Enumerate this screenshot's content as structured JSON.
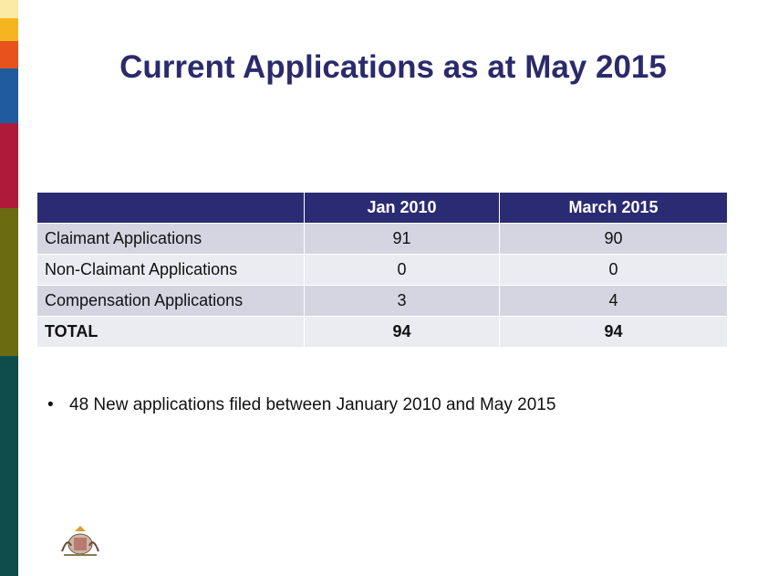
{
  "title": "Current Applications as at May 2015",
  "table": {
    "header": [
      "Jan 2010",
      "March 2015"
    ],
    "rows": [
      [
        "Claimant Applications",
        91,
        90
      ],
      [
        "Non-Claimant Applications",
        0,
        0
      ],
      [
        "Compensation Applications",
        3,
        4
      ],
      [
        "TOTAL",
        94,
        94
      ]
    ]
  },
  "bullets": [
    "48 New applications filed between January 2010 and May 2015"
  ]
}
